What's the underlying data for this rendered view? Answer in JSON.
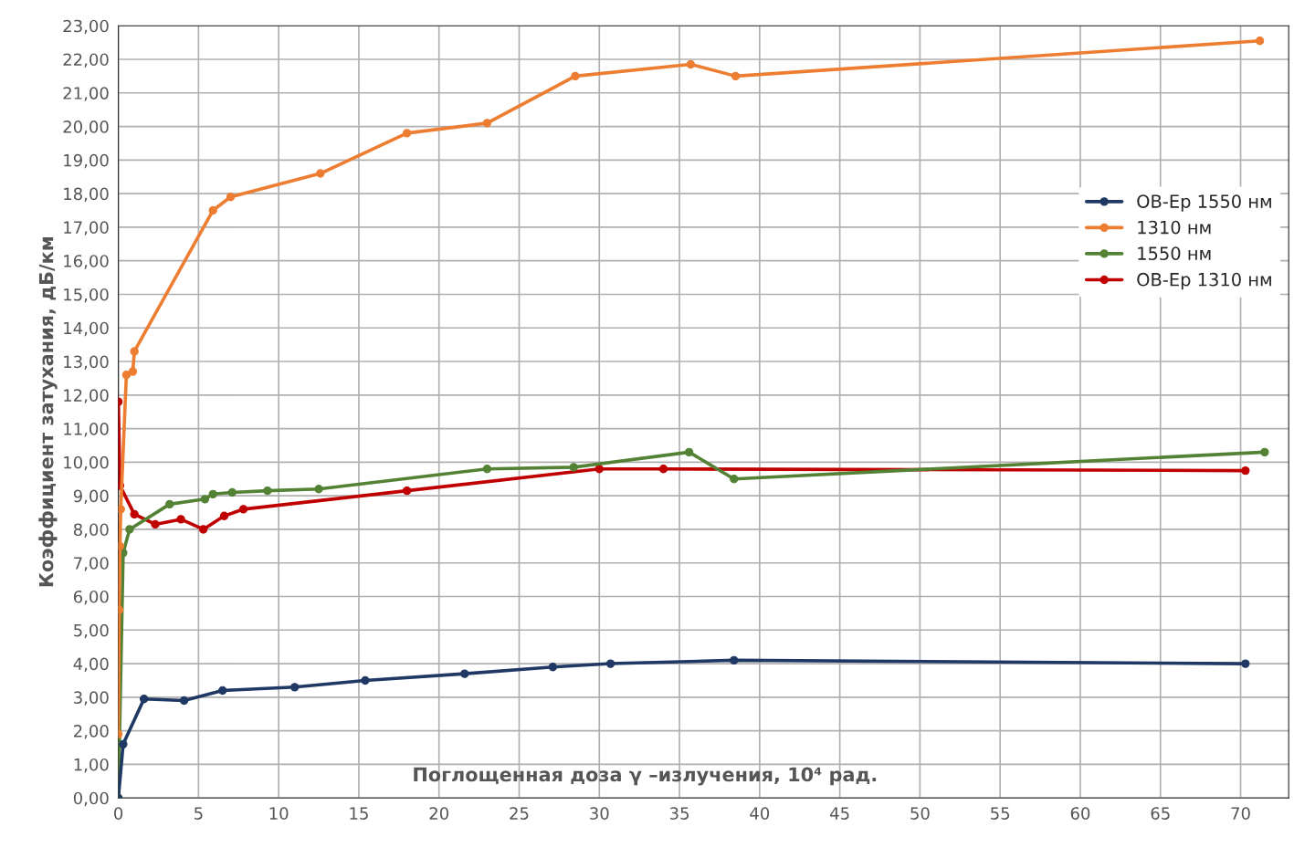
{
  "chart_data": {
    "type": "line",
    "xlabel": "Поглощенная доза γ –излучения, 10⁴ рад.",
    "ylabel": "Коэффициент затухания, дБ/км",
    "xlim": [
      0,
      73
    ],
    "xticks": [
      0,
      5,
      10,
      15,
      20,
      25,
      30,
      35,
      40,
      45,
      50,
      55,
      60,
      65,
      70
    ],
    "ylim": [
      0,
      23
    ],
    "yticks": [
      {
        "value": 0,
        "label": "0,00"
      },
      {
        "value": 1,
        "label": "1,00"
      },
      {
        "value": 2,
        "label": "2,00"
      },
      {
        "value": 3,
        "label": "3,00"
      },
      {
        "value": 4,
        "label": "4,00"
      },
      {
        "value": 5,
        "label": "5,00"
      },
      {
        "value": 6,
        "label": "6,00"
      },
      {
        "value": 7,
        "label": "7,00"
      },
      {
        "value": 8,
        "label": "8,00"
      },
      {
        "value": 9,
        "label": "9,00"
      },
      {
        "value": 10,
        "label": "10,00"
      },
      {
        "value": 11,
        "label": "11,00"
      },
      {
        "value": 12,
        "label": "12,00"
      },
      {
        "value": 13,
        "label": "13,00"
      },
      {
        "value": 14,
        "label": "14,00"
      },
      {
        "value": 15,
        "label": "15,00"
      },
      {
        "value": 16,
        "label": "16,00"
      },
      {
        "value": 17,
        "label": "17,00"
      },
      {
        "value": 18,
        "label": "18,00"
      },
      {
        "value": 19,
        "label": "19,00"
      },
      {
        "value": 20,
        "label": "20,00"
      },
      {
        "value": 21,
        "label": "21,00"
      },
      {
        "value": 22,
        "label": "22,00"
      },
      {
        "value": 23,
        "label": "23,00"
      }
    ],
    "grid": true,
    "legend": "right",
    "marker": "circle",
    "line_style": "solid",
    "series": [
      {
        "name": "ОВ-Ер 1550 нм",
        "color": "#1f3864",
        "x": [
          0,
          0.3,
          1.6,
          4.1,
          6.5,
          11,
          15.4,
          21.6,
          27.1,
          30.7,
          38.4,
          70.3
        ],
        "values": [
          0,
          1.6,
          2.95,
          2.9,
          3.2,
          3.3,
          3.5,
          3.7,
          3.9,
          4.0,
          4.1,
          4.0
        ]
      },
      {
        "name": "1310 нм",
        "color": "#ed7d31",
        "x": [
          0,
          0.05,
          0.1,
          0.15,
          0.5,
          0.9,
          1,
          5.9,
          7.0,
          12.6,
          18.0,
          23.0,
          28.5,
          35.7,
          38.5,
          71.2
        ],
        "values": [
          1.9,
          5.6,
          7.5,
          8.6,
          12.6,
          12.7,
          13.3,
          17.5,
          17.9,
          18.6,
          19.8,
          20.1,
          21.5,
          21.85,
          21.5,
          22.55
        ]
      },
      {
        "name": "1550 нм",
        "color": "#548235",
        "x": [
          0,
          0.3,
          0.7,
          3.2,
          5.4,
          5.9,
          7.1,
          9.3,
          12.5,
          23.0,
          28.4,
          35.6,
          38.4,
          71.5
        ],
        "values": [
          0,
          7.3,
          8.0,
          8.75,
          8.9,
          9.05,
          9.1,
          9.15,
          9.2,
          9.8,
          9.85,
          10.3,
          9.5,
          10.3
        ]
      },
      {
        "name": "ОВ-Ер 1310 нм",
        "color": "#c00000",
        "x": [
          0,
          0.1,
          1.0,
          2.3,
          3.9,
          5.3,
          6.6,
          7.8,
          18.0,
          30.0,
          34.0,
          70.3
        ],
        "values": [
          11.8,
          9.3,
          8.45,
          8.15,
          8.3,
          8.0,
          8.4,
          8.6,
          9.15,
          9.8,
          9.8,
          9.75
        ]
      }
    ]
  }
}
